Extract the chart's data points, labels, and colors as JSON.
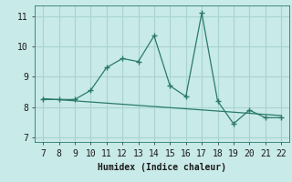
{
  "x_data": [
    7,
    8,
    9,
    10,
    11,
    12,
    13,
    14,
    15,
    16,
    17,
    18,
    19,
    20,
    21,
    22
  ],
  "y_data": [
    8.25,
    8.25,
    8.25,
    8.55,
    9.3,
    9.6,
    9.5,
    10.35,
    8.7,
    8.35,
    11.1,
    8.2,
    7.45,
    7.9,
    7.65,
    7.65
  ],
  "trend_x": [
    7,
    22
  ],
  "trend_y": [
    8.28,
    7.72
  ],
  "line_color": "#2a7a6b",
  "bg_color": "#c8eae8",
  "grid_color": "#a8d4d0",
  "xlabel": "Humidex (Indice chaleur)",
  "xlim": [
    6.5,
    22.5
  ],
  "ylim": [
    6.85,
    11.35
  ],
  "xticks": [
    7,
    8,
    9,
    10,
    11,
    12,
    13,
    14,
    15,
    16,
    17,
    18,
    19,
    20,
    21,
    22
  ],
  "yticks": [
    7,
    8,
    9,
    10,
    11
  ],
  "label_fontsize": 7,
  "tick_fontsize": 7
}
